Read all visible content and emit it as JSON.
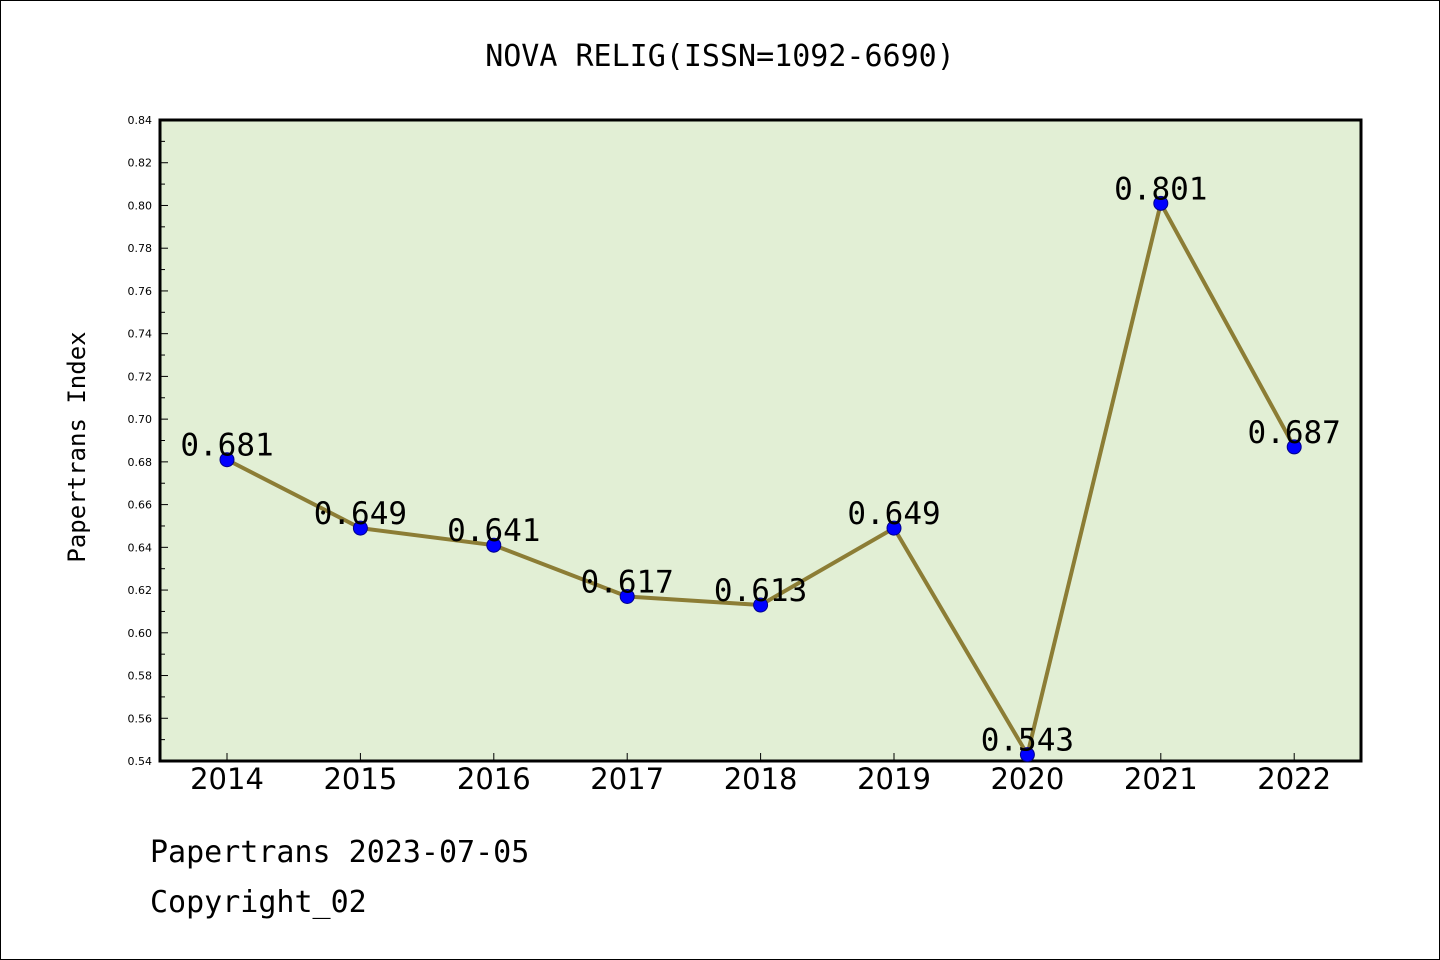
{
  "chart_data": {
    "type": "line",
    "title": "NOVA RELIG(ISSN=1092-6690)",
    "ylabel": "Papertrans Index",
    "xlabel": "",
    "categories": [
      "2014",
      "2015",
      "2016",
      "2017",
      "2018",
      "2019",
      "2020",
      "2021",
      "2022"
    ],
    "values": [
      0.681,
      0.649,
      0.641,
      0.617,
      0.613,
      0.649,
      0.543,
      0.801,
      0.687
    ],
    "data_labels": [
      "0.681",
      "0.649",
      "0.641",
      "0.617",
      "0.613",
      "0.649",
      "0.543",
      "0.801",
      "0.687"
    ],
    "ylim": [
      0.54,
      0.84
    ],
    "yticks": [
      "0.54",
      "0.56",
      "0.58",
      "0.60",
      "0.62",
      "0.64",
      "0.66",
      "0.68",
      "0.70",
      "0.72",
      "0.74",
      "0.76",
      "0.78",
      "0.80",
      "0.82",
      "0.84"
    ],
    "grid": false,
    "legend": "none",
    "colors": {
      "plot_background": "#e2efd5",
      "line": "#8c7d35",
      "marker": "#0000ff"
    }
  },
  "footer": {
    "line1": "Papertrans 2023-07-05",
    "line2": "Copyright_02"
  }
}
